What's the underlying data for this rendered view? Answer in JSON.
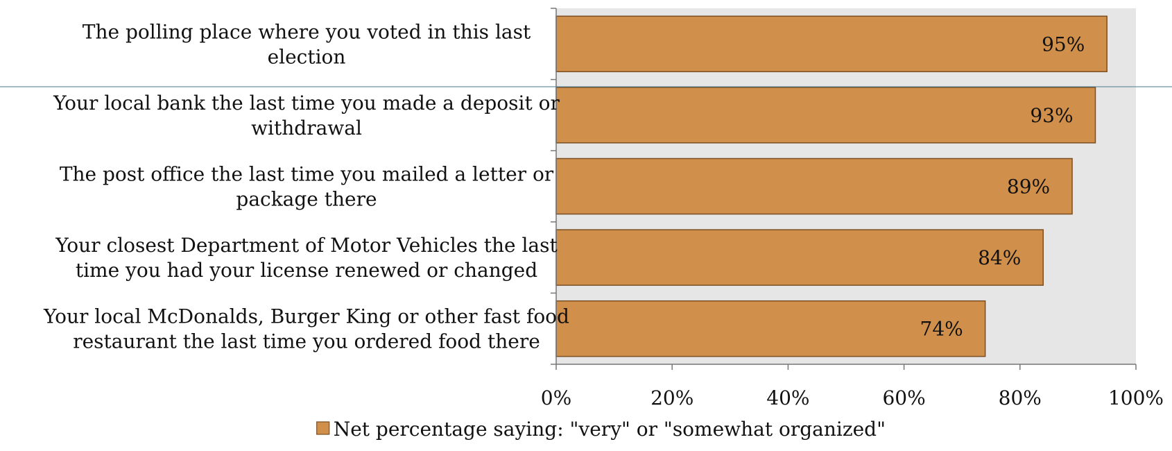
{
  "chart_data": {
    "type": "bar",
    "orientation": "horizontal",
    "categories": [
      [
        "The polling place where you voted in this last",
        "election"
      ],
      [
        "Your local bank the last time you made a deposit or",
        "withdrawal"
      ],
      [
        "The post office the last time you mailed a letter or",
        "package there"
      ],
      [
        "Your closest Department of Motor Vehicles the last",
        "time you had your license renewed or changed"
      ],
      [
        "Your local McDonalds, Burger King or other fast food",
        "restaurant the last time you ordered food there"
      ]
    ],
    "series": [
      {
        "name": "Net percentage saying: \"very\" or \"somewhat organized\"",
        "values": [
          95,
          93,
          89,
          84,
          74
        ],
        "data_labels": [
          "95%",
          "93%",
          "89%",
          "84%",
          "74%"
        ]
      }
    ],
    "xlim": [
      0,
      100
    ],
    "xticks": [
      0,
      20,
      40,
      60,
      80,
      100
    ],
    "xtick_labels": [
      "0%",
      "20%",
      "40%",
      "60%",
      "80%",
      "100%"
    ],
    "grid": false,
    "legend_position": "bottom",
    "colors": {
      "bar_fill": "#D08F4A",
      "bar_stroke": "#7A4E22",
      "plot_background": "#E6E6E6",
      "axis": "#777777",
      "reference_line": "#4A7A8C"
    }
  }
}
